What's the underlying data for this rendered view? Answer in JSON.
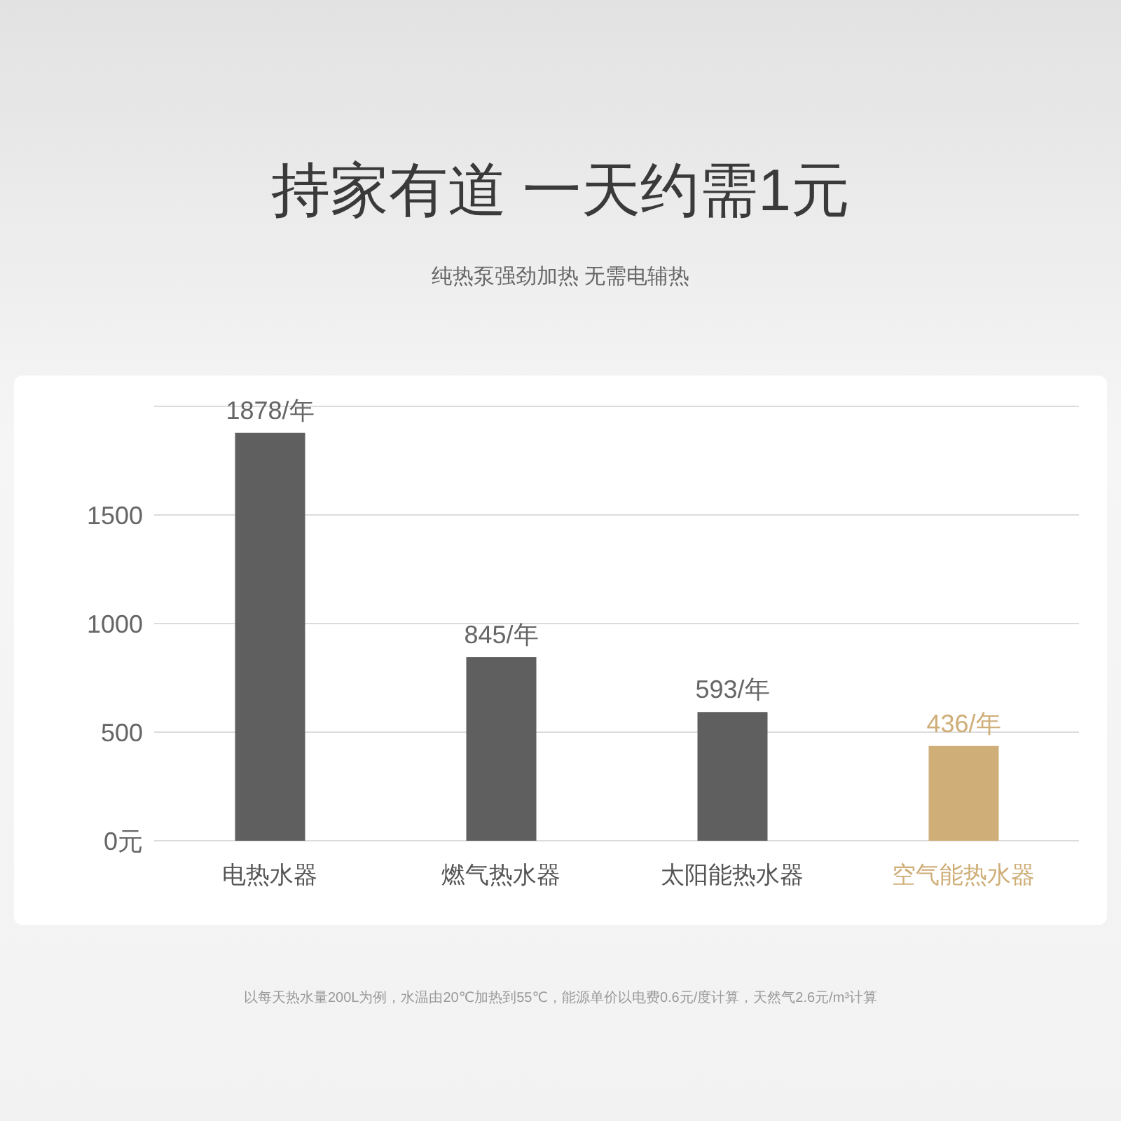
{
  "chart_data": {
    "type": "bar",
    "title": "持家有道 一天约需1元",
    "subtitle": "纯热泵强劲加热 无需电辅热",
    "categories": [
      "电热水器",
      "燃气热水器",
      "太阳能热水器",
      "空气能热水器"
    ],
    "values": [
      1878,
      845,
      593,
      436
    ],
    "colors": [
      "#5f5f5f",
      "#5f5f5f",
      "#5f5f5f",
      "#cfae78"
    ],
    "value_labels": [
      "1878/年",
      "845/年",
      "593/年",
      "436/年"
    ],
    "ylim": [
      0,
      2000
    ],
    "yticks": [
      {
        "value": 0,
        "label": "0元"
      },
      500,
      1000,
      1500
    ],
    "grid": "y",
    "annotations": [
      "以每天热水量200L为例，水温由20℃加热到55℃，能源单价以电费0.6元/度计算，天然气2.6元/m³计算"
    ]
  }
}
